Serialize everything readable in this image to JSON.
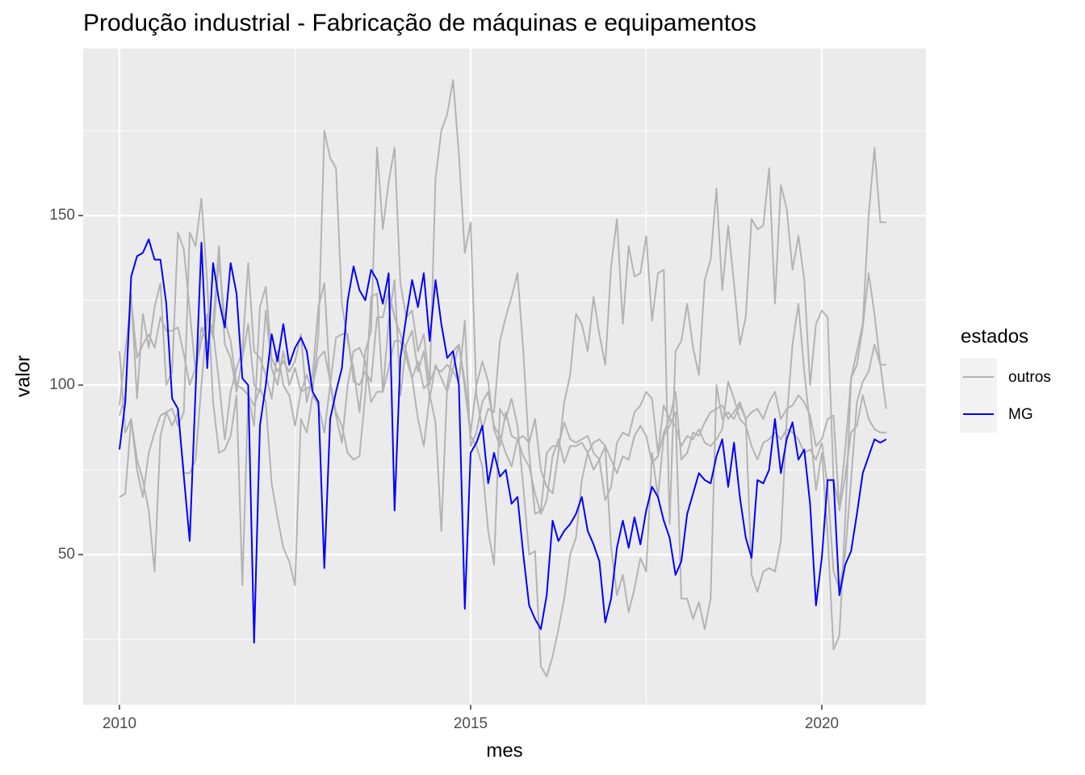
{
  "chart_data": {
    "type": "line",
    "title": "Produção industrial - Fabricação de máquinas e equipamentos",
    "x_label": "mes",
    "y_label": "valor",
    "legend_title": "estados",
    "x": [
      2010,
      2010.083,
      2010.167,
      2010.25,
      2010.333,
      2010.417,
      2010.5,
      2010.583,
      2010.667,
      2010.75,
      2010.833,
      2010.917,
      2011,
      2011.083,
      2011.167,
      2011.25,
      2011.333,
      2011.417,
      2011.5,
      2011.583,
      2011.667,
      2011.75,
      2011.833,
      2011.917,
      2012,
      2012.083,
      2012.167,
      2012.25,
      2012.333,
      2012.417,
      2012.5,
      2012.583,
      2012.667,
      2012.75,
      2012.833,
      2012.917,
      2013,
      2013.083,
      2013.167,
      2013.25,
      2013.333,
      2013.417,
      2013.5,
      2013.583,
      2013.667,
      2013.75,
      2013.833,
      2013.917,
      2014,
      2014.083,
      2014.167,
      2014.25,
      2014.333,
      2014.417,
      2014.5,
      2014.583,
      2014.667,
      2014.75,
      2014.833,
      2014.917,
      2015,
      2015.083,
      2015.167,
      2015.25,
      2015.333,
      2015.417,
      2015.5,
      2015.583,
      2015.667,
      2015.75,
      2015.833,
      2015.917,
      2016,
      2016.083,
      2016.167,
      2016.25,
      2016.333,
      2016.417,
      2016.5,
      2016.583,
      2016.667,
      2016.75,
      2016.833,
      2016.917,
      2017,
      2017.083,
      2017.167,
      2017.25,
      2017.333,
      2017.417,
      2017.5,
      2017.583,
      2017.667,
      2017.75,
      2017.833,
      2017.917,
      2018,
      2018.083,
      2018.167,
      2018.25,
      2018.333,
      2018.417,
      2018.5,
      2018.583,
      2018.667,
      2018.75,
      2018.833,
      2018.917,
      2019,
      2019.083,
      2019.167,
      2019.25,
      2019.333,
      2019.417,
      2019.5,
      2019.583,
      2019.667,
      2019.75,
      2019.833,
      2019.917,
      2020,
      2020.083,
      2020.167,
      2020.25,
      2020.333,
      2020.417,
      2020.5,
      2020.583,
      2020.667,
      2020.75,
      2020.833,
      2020.917
    ],
    "series": [
      {
        "name": "outros",
        "color": "#b3b3b3",
        "values": [
          94,
          110,
          125,
          108,
          112,
          115,
          111,
          120,
          116,
          116,
          117,
          109,
          100,
          105,
          117,
          112,
          118,
          141,
          112,
          108,
          98,
          108,
          118,
          100,
          98,
          122,
          105,
          100,
          110,
          100,
          105,
          98,
          103,
          98,
          115,
          175,
          167,
          164,
          124,
          113,
          105,
          92,
          110,
          116,
          170,
          146,
          160,
          170,
          130,
          120,
          122,
          110,
          115,
          100,
          161,
          175,
          180,
          190,
          168,
          139,
          148,
          97,
          87,
          93,
          92,
          113,
          120,
          126,
          133,
          110,
          80,
          62,
          63,
          80,
          82,
          82,
          89,
          84,
          83,
          84,
          85,
          80,
          78,
          66,
          70,
          83,
          86,
          85,
          92,
          94,
          98,
          96,
          80,
          94,
          90,
          98,
          78,
          80,
          86,
          85,
          89,
          92,
          93,
          94,
          90,
          92,
          95,
          90,
          92,
          93,
          90,
          95,
          98,
          90,
          93,
          94,
          97,
          95,
          91,
          82,
          84,
          90,
          91,
          63,
          73,
          86,
          88,
          97,
          90,
          87,
          86,
          86
        ]
      },
      {
        "name": "outros",
        "color": "#b3b3b3",
        "values": [
          110,
          86,
          90,
          75,
          67,
          80,
          86,
          91,
          92,
          88,
          92,
          74,
          74,
          78,
          100,
          120,
          116,
          101,
          84,
          98,
          105,
          110,
          136,
          110,
          108,
          103,
          96,
          110,
          100,
          97,
          88,
          98,
          99,
          100,
          108,
          110,
          101,
          92,
          88,
          80,
          78,
          79,
          97,
          126,
          127,
          98,
          119,
          131,
          97,
          112,
          116,
          104,
          110,
          96,
          106,
          102,
          98,
          105,
          112,
          101,
          86,
          100,
          107,
          101,
          87,
          82,
          92,
          85,
          84,
          85,
          83,
          90,
          75,
          70,
          68,
          80,
          95,
          103,
          121,
          118,
          110,
          126,
          115,
          106,
          135,
          149,
          118,
          141,
          132,
          133,
          144,
          119,
          133,
          134,
          59,
          110,
          113,
          124,
          111,
          103,
          131,
          137,
          158,
          128,
          147,
          130,
          112,
          120,
          149,
          146,
          147,
          164,
          124,
          159,
          152,
          134,
          144,
          131,
          100,
          118,
          122,
          120,
          72,
          64,
          81,
          102,
          106,
          117,
          133,
          121,
          106,
          106
        ]
      },
      {
        "name": "outros",
        "color": "#b3b3b3",
        "values": [
          67,
          68,
          90,
          78,
          72,
          63,
          45,
          85,
          92,
          93,
          88,
          92,
          145,
          141,
          155,
          130,
          95,
          80,
          81,
          85,
          97,
          41,
          97,
          94,
          99,
          95,
          71,
          61,
          52,
          48,
          41,
          90,
          86,
          97,
          94,
          86,
          100,
          91,
          83,
          100,
          110,
          111,
          107,
          95,
          98,
          98,
          105,
          113,
          113,
          108,
          102,
          90,
          82,
          97,
          89,
          57,
          100,
          110,
          112,
          99,
          85,
          82,
          76,
          57,
          47,
          93,
          90,
          96,
          88,
          70,
          50,
          51,
          17,
          14,
          20,
          28,
          37,
          50,
          55,
          72,
          80,
          75,
          78,
          82,
          52,
          38,
          44,
          33,
          40,
          49,
          45,
          80,
          67,
          85,
          88,
          92,
          37,
          37,
          31,
          36,
          28,
          37,
          100,
          90,
          92,
          90,
          94,
          90,
          44,
          39,
          45,
          46,
          45,
          54,
          90,
          112,
          124,
          104,
          88,
          69,
          80,
          56,
          22,
          26,
          60,
          102,
          110,
          118,
          150,
          170,
          148,
          148
        ]
      },
      {
        "name": "outros",
        "color": "#b3b3b3",
        "values": [
          91,
          97,
          127,
          96,
          121,
          111,
          123,
          130,
          100,
          104,
          145,
          140,
          122,
          104,
          113,
          121,
          114,
          137,
          119,
          113,
          100,
          99,
          97,
          88,
          123,
          129,
          108,
          104,
          107,
          104,
          107,
          115,
          95,
          103,
          123,
          130,
          100,
          114,
          115,
          115,
          101,
          100,
          104,
          101,
          120,
          120,
          128,
          120,
          115,
          110,
          102,
          107,
          99,
          101,
          105,
          104,
          106,
          104,
          101,
          119,
          82,
          86,
          95,
          98,
          88,
          85,
          80,
          76,
          84,
          79,
          76,
          68,
          62,
          66,
          79,
          84,
          77,
          82,
          82,
          83,
          80,
          83,
          84,
          82,
          78,
          74,
          79,
          78,
          85,
          88,
          85,
          77,
          79,
          86,
          90,
          88,
          82,
          85,
          84,
          87,
          83,
          82,
          84,
          87,
          101,
          96,
          90,
          88,
          82,
          78,
          83,
          84,
          86,
          84,
          87,
          86,
          84,
          80,
          81,
          78,
          83,
          70,
          45,
          40,
          50,
          72,
          95,
          101,
          104,
          112,
          106,
          93
        ]
      },
      {
        "name": "MG",
        "color": "#0000ff",
        "values": [
          81,
          95,
          132,
          138,
          139,
          143,
          137,
          137,
          124,
          96,
          93,
          73,
          54,
          98,
          142,
          105,
          136,
          125,
          117,
          136,
          127,
          102,
          100,
          24,
          88,
          100,
          115,
          107,
          118,
          106,
          111,
          114,
          110,
          98,
          95,
          46,
          90,
          98,
          105,
          125,
          135,
          128,
          125,
          134,
          131,
          124,
          133,
          63,
          108,
          120,
          131,
          123,
          133,
          113,
          131,
          118,
          108,
          110,
          100,
          34,
          80,
          83,
          88,
          71,
          80,
          73,
          75,
          65,
          67,
          50,
          35,
          31,
          28,
          38,
          60,
          54,
          57,
          59,
          62,
          67,
          57,
          53,
          48,
          30,
          37,
          52,
          60,
          52,
          61,
          53,
          63,
          70,
          67,
          60,
          55,
          44,
          48,
          62,
          68,
          74,
          72,
          71,
          79,
          84,
          70,
          83,
          67,
          55,
          49,
          72,
          71,
          75,
          90,
          74,
          84,
          89,
          78,
          81,
          65,
          35,
          49,
          72,
          72,
          38,
          47,
          51,
          62,
          74,
          79,
          84,
          83,
          84
        ]
      }
    ],
    "xlim": [
      2009.483,
      2021.483
    ],
    "xticks": [
      2010,
      2015,
      2020
    ],
    "ylim": [
      5.7,
      199.3
    ],
    "yticks": [
      50,
      100,
      150
    ],
    "grid": true
  }
}
